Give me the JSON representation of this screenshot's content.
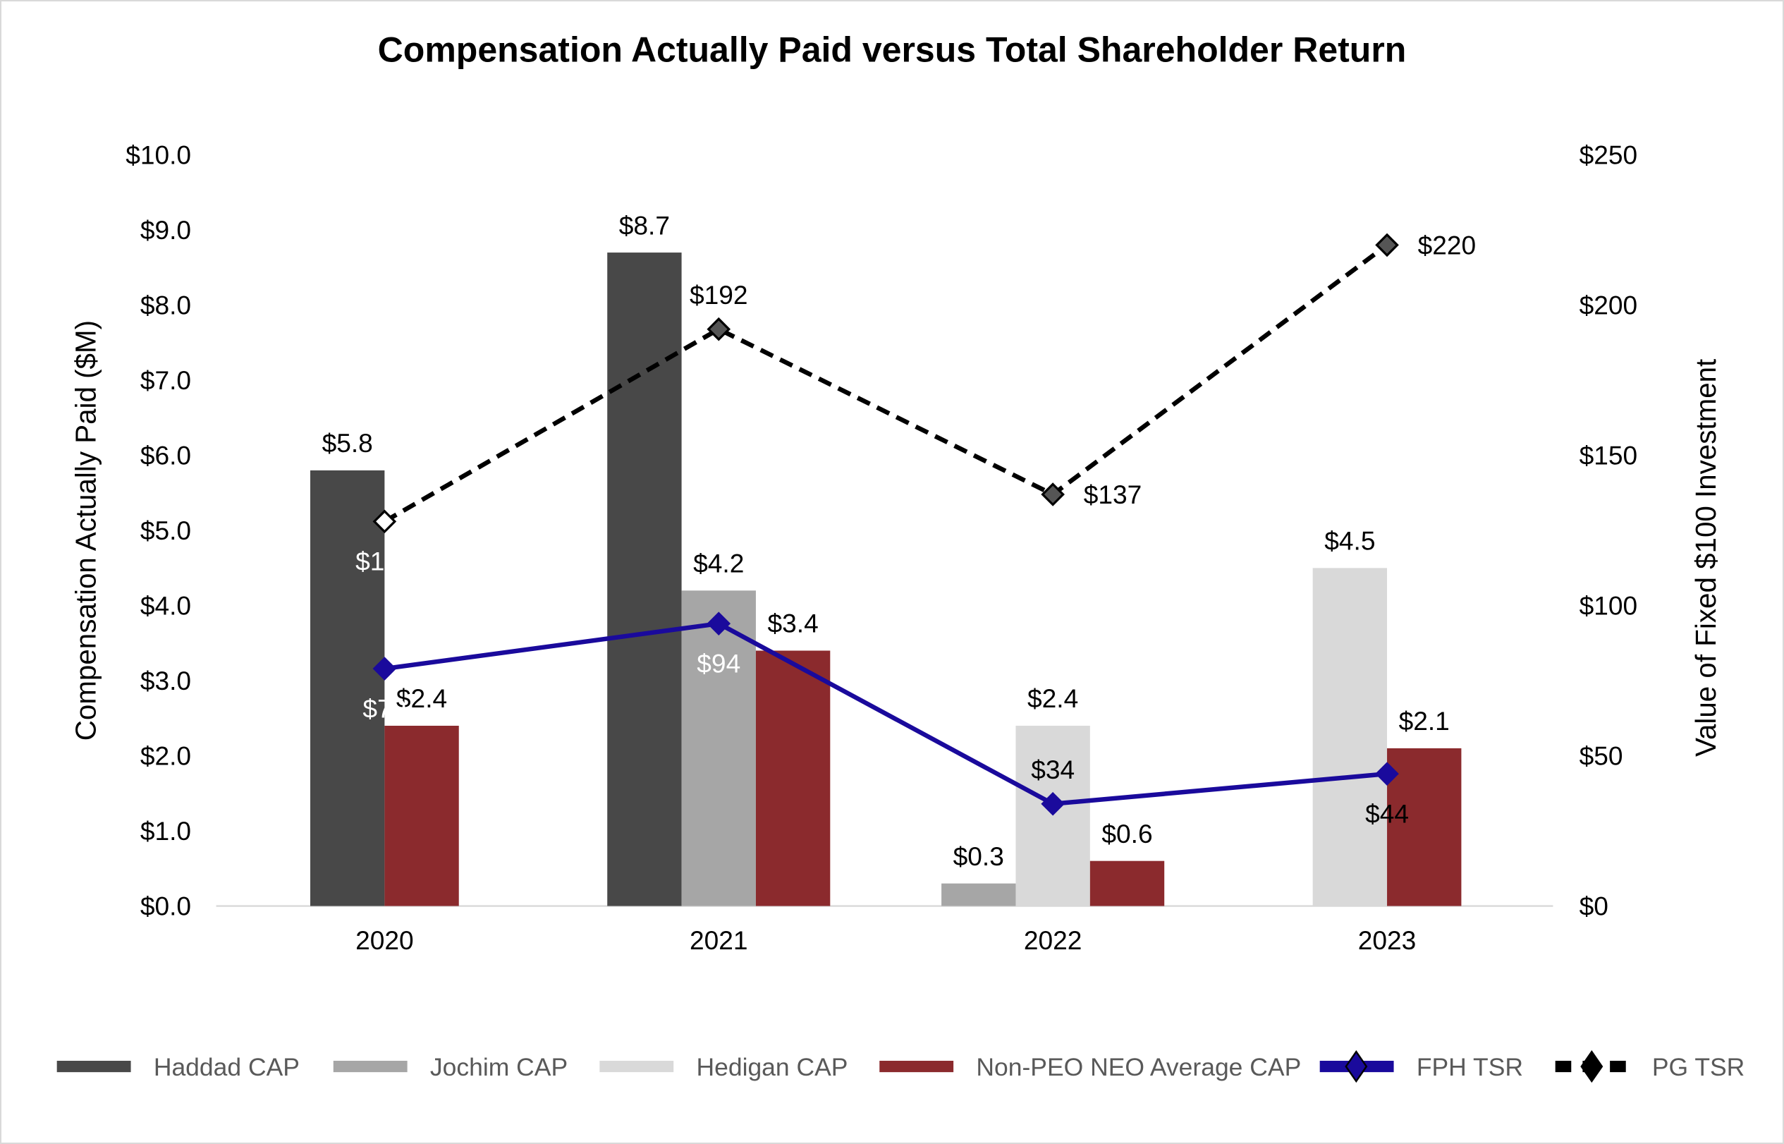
{
  "chart_data": {
    "type": "bar+line",
    "title": "Compensation Actually Paid versus Total Shareholder Return",
    "ylabel": "Compensation Actually Paid ($M)",
    "y2label": "Value of Fixed $100 Investment",
    "ylim": [
      0,
      10
    ],
    "y2lim": [
      0,
      250
    ],
    "yticks": [
      "$0.0",
      "$1.0",
      "$2.0",
      "$3.0",
      "$4.0",
      "$5.0",
      "$6.0",
      "$7.0",
      "$8.0",
      "$9.0",
      "$10.0"
    ],
    "y2ticks": [
      "$0",
      "$50",
      "$100",
      "$150",
      "$200",
      "$250"
    ],
    "categories": [
      "2020",
      "2021",
      "2022",
      "2023"
    ],
    "grid": false,
    "legend_position": "bottom",
    "bar_series": [
      {
        "name": "Haddad CAP",
        "color": "#484848",
        "values": [
          5.8,
          8.7,
          null,
          null
        ],
        "labels": [
          "$5.8",
          "$8.7",
          "",
          ""
        ]
      },
      {
        "name": "Jochim CAP",
        "color": "#a6a6a6",
        "values": [
          null,
          4.2,
          0.3,
          null
        ],
        "labels": [
          "",
          "$4.2",
          "$0.3",
          ""
        ]
      },
      {
        "name": "Hedigan CAP",
        "color": "#d9d9d9",
        "values": [
          null,
          null,
          2.4,
          4.5
        ],
        "labels": [
          "",
          "",
          "$2.4",
          "$4.5"
        ]
      },
      {
        "name": "Non-PEO NEO Average CAP",
        "color": "#8b2a2d",
        "values": [
          2.4,
          3.4,
          0.6,
          2.1
        ],
        "labels": [
          "$2.4",
          "$3.4",
          "$0.6",
          "$2.1"
        ]
      }
    ],
    "line_series": [
      {
        "name": "FPH TSR",
        "color": "#1a0a9c",
        "style": "solid",
        "axis": "right",
        "values": [
          79,
          94,
          34,
          44
        ],
        "labels": [
          "$79",
          "$94",
          "$34",
          "$44"
        ]
      },
      {
        "name": "PG TSR",
        "color": "#000000",
        "style": "dashed",
        "axis": "right",
        "values": [
          128,
          192,
          137,
          220
        ],
        "labels": [
          "$128",
          "$192",
          "$137",
          "$220"
        ]
      }
    ]
  }
}
